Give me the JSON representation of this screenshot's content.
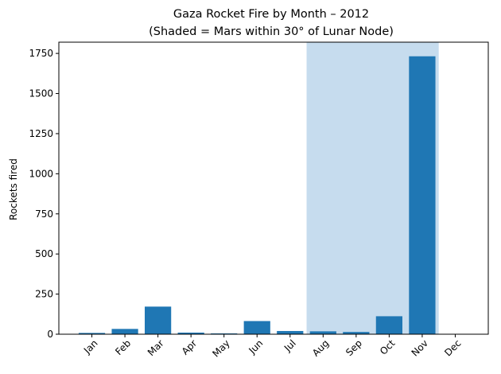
{
  "chart_data": {
    "type": "bar",
    "title": "Gaza Rocket Fire by Month – 2012",
    "subtitle": "(Shaded = Mars within 30° of Lunar Node)",
    "xlabel": "",
    "ylabel": "Rockets fired",
    "categories": [
      "Jan",
      "Feb",
      "Mar",
      "Apr",
      "May",
      "Jun",
      "Jul",
      "Aug",
      "Sep",
      "Oct",
      "Nov",
      "Dec"
    ],
    "values": [
      8,
      33,
      172,
      10,
      5,
      82,
      20,
      18,
      14,
      112,
      1732,
      0
    ],
    "ylim": [
      0,
      1820
    ],
    "yticks": [
      0,
      250,
      500,
      750,
      1000,
      1250,
      1500,
      1750
    ],
    "shaded_range": [
      "Aug",
      "Nov"
    ],
    "grid": false,
    "colors": {
      "bar": "#1f77b4",
      "shade": "#c6dcee"
    }
  }
}
